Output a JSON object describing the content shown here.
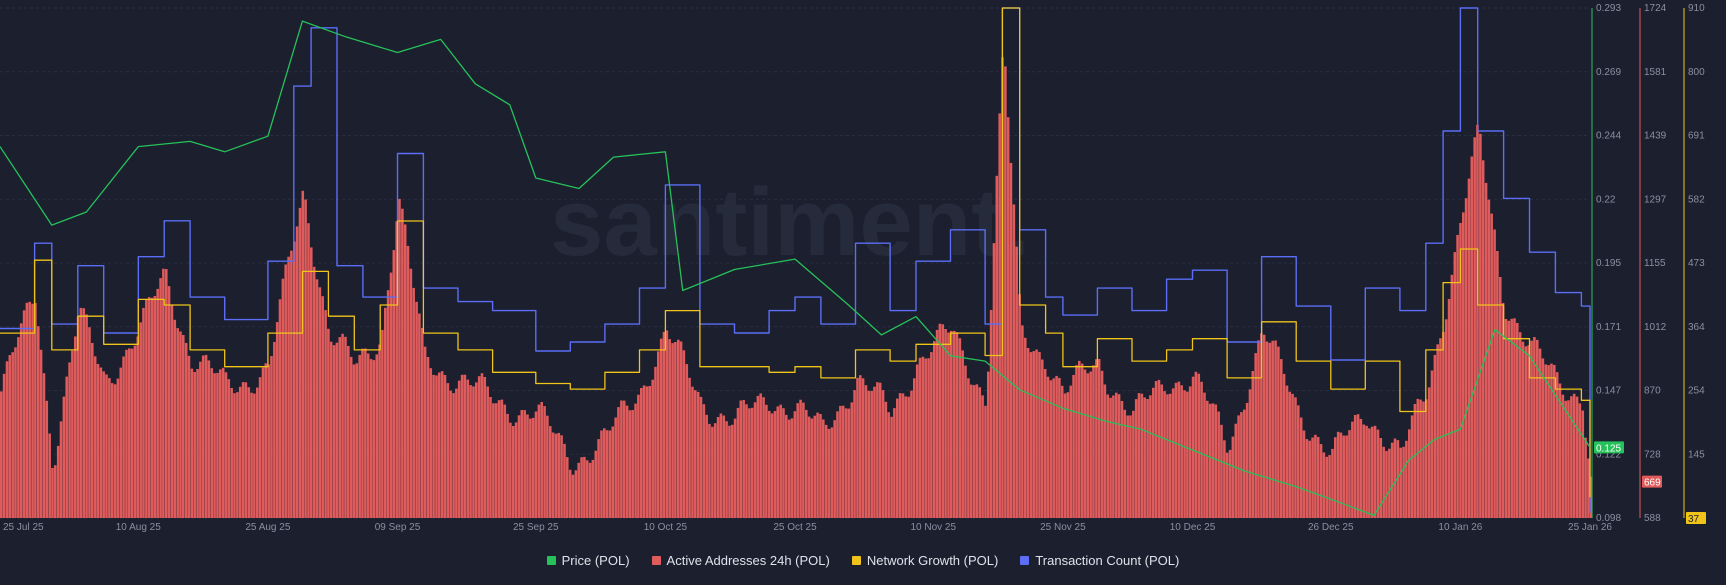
{
  "chart_data": {
    "type": "line",
    "watermark": "santiment.",
    "x_ticks": [
      "25 Jul 25",
      "10 Aug 25",
      "25 Aug 25",
      "09 Sep 25",
      "25 Sep 25",
      "10 Oct 25",
      "25 Oct 25",
      "10 Nov 25",
      "25 Nov 25",
      "10 Dec 25",
      "26 Dec 25",
      "10 Jan 26",
      "25 Jan 26"
    ],
    "axes": {
      "price": {
        "range": [
          0.098,
          0.293
        ],
        "ticks": [
          "0.293",
          "0.269",
          "0.244",
          "0.22",
          "0.195",
          "0.171",
          "0.147",
          "0.122",
          "0.098"
        ],
        "current_label": "0.125",
        "color": "#26c15a"
      },
      "active_addresses": {
        "range": [
          588,
          1724
        ],
        "ticks": [
          "1724",
          "1581",
          "1439",
          "1297",
          "1155",
          "1012",
          "870",
          "728",
          "588"
        ],
        "current_label": "669",
        "color": "#e05b5b"
      },
      "network_growth": {
        "range": [
          0,
          910
        ],
        "ticks": [
          "910",
          "800",
          "691",
          "582",
          "473",
          "364",
          "254",
          "145",
          "37"
        ],
        "current_label": "37",
        "color": "#f0c419"
      }
    },
    "series": [
      {
        "name": "Price (POL)",
        "color": "#26c15a",
        "axis": "price",
        "x": [
          "2025-07-25",
          "2025-07-31",
          "2025-08-04",
          "2025-08-10",
          "2025-08-16",
          "2025-08-20",
          "2025-08-25",
          "2025-08-29",
          "2025-09-03",
          "2025-09-09",
          "2025-09-14",
          "2025-09-18",
          "2025-09-22",
          "2025-09-25",
          "2025-09-30",
          "2025-10-04",
          "2025-10-10",
          "2025-10-12",
          "2025-10-18",
          "2025-10-25",
          "2025-10-31",
          "2025-11-04",
          "2025-11-08",
          "2025-11-12",
          "2025-11-16",
          "2025-11-20",
          "2025-11-25",
          "2025-11-30",
          "2025-12-04",
          "2025-12-10",
          "2025-12-16",
          "2025-12-22",
          "2025-12-27",
          "2025-12-31",
          "2026-01-04",
          "2026-01-07",
          "2026-01-10",
          "2026-01-14",
          "2026-01-18",
          "2026-01-22",
          "2026-01-25"
        ],
        "y": [
          0.24,
          0.21,
          0.215,
          0.24,
          0.242,
          0.238,
          0.244,
          0.288,
          0.282,
          0.276,
          0.281,
          0.264,
          0.256,
          0.228,
          0.224,
          0.236,
          0.238,
          0.185,
          0.193,
          0.197,
          0.18,
          0.168,
          0.175,
          0.16,
          0.158,
          0.147,
          0.14,
          0.135,
          0.132,
          0.124,
          0.116,
          0.11,
          0.104,
          0.099,
          0.12,
          0.128,
          0.132,
          0.17,
          0.16,
          0.14,
          0.125
        ]
      },
      {
        "name": "Active Addresses 24h (POL)",
        "color": "#e05b5b",
        "axis": "active_addresses",
        "x": [
          "2025-07-25",
          "2025-07-29",
          "2025-07-31",
          "2025-08-03",
          "2025-08-06",
          "2025-08-10",
          "2025-08-13",
          "2025-08-16",
          "2025-08-20",
          "2025-08-25",
          "2025-08-29",
          "2025-09-01",
          "2025-09-04",
          "2025-09-07",
          "2025-09-09",
          "2025-09-12",
          "2025-09-16",
          "2025-09-20",
          "2025-09-25",
          "2025-09-29",
          "2025-10-03",
          "2025-10-07",
          "2025-10-10",
          "2025-10-14",
          "2025-10-18",
          "2025-10-22",
          "2025-10-25",
          "2025-10-28",
          "2025-11-01",
          "2025-11-05",
          "2025-11-08",
          "2025-11-12",
          "2025-11-16",
          "2025-11-18",
          "2025-11-20",
          "2025-11-23",
          "2025-11-25",
          "2025-11-29",
          "2025-12-03",
          "2025-12-07",
          "2025-12-10",
          "2025-12-14",
          "2025-12-18",
          "2025-12-22",
          "2025-12-26",
          "2025-12-30",
          "2026-01-03",
          "2026-01-06",
          "2026-01-08",
          "2026-01-10",
          "2026-01-12",
          "2026-01-15",
          "2026-01-18",
          "2026-01-21",
          "2026-01-24",
          "2026-01-25"
        ],
        "y": [
          870,
          1090,
          720,
          1040,
          900,
          1000,
          1130,
          950,
          880,
          920,
          1320,
          1000,
          920,
          1000,
          1300,
          940,
          900,
          850,
          820,
          720,
          760,
          880,
          1000,
          850,
          800,
          860,
          830,
          780,
          900,
          820,
          940,
          1000,
          860,
          1640,
          1000,
          950,
          860,
          940,
          810,
          900,
          900,
          750,
          1000,
          840,
          720,
          830,
          720,
          880,
          1050,
          1250,
          1440,
          1080,
          960,
          900,
          860,
          669
        ]
      },
      {
        "name": "Network Growth (POL)",
        "color": "#f0c419",
        "axis": "network_growth",
        "x": [
          "2025-07-25",
          "2025-07-29",
          "2025-07-31",
          "2025-08-03",
          "2025-08-06",
          "2025-08-10",
          "2025-08-13",
          "2025-08-16",
          "2025-08-20",
          "2025-08-25",
          "2025-08-29",
          "2025-09-01",
          "2025-09-04",
          "2025-09-07",
          "2025-09-09",
          "2025-09-12",
          "2025-09-16",
          "2025-09-20",
          "2025-09-25",
          "2025-09-29",
          "2025-10-03",
          "2025-10-07",
          "2025-10-10",
          "2025-10-14",
          "2025-10-18",
          "2025-10-22",
          "2025-10-25",
          "2025-10-28",
          "2025-11-01",
          "2025-11-05",
          "2025-11-08",
          "2025-11-12",
          "2025-11-16",
          "2025-11-18",
          "2025-11-20",
          "2025-11-23",
          "2025-11-25",
          "2025-11-29",
          "2025-12-03",
          "2025-12-07",
          "2025-12-10",
          "2025-12-14",
          "2025-12-18",
          "2025-12-22",
          "2025-12-26",
          "2025-12-30",
          "2026-01-03",
          "2026-01-06",
          "2026-01-08",
          "2026-01-10",
          "2026-01-12",
          "2026-01-15",
          "2026-01-18",
          "2026-01-21",
          "2026-01-24",
          "2026-01-25"
        ],
        "y": [
          330,
          460,
          300,
          360,
          310,
          390,
          380,
          300,
          270,
          330,
          440,
          360,
          300,
          380,
          530,
          330,
          300,
          260,
          240,
          230,
          260,
          300,
          370,
          270,
          270,
          260,
          270,
          250,
          300,
          280,
          310,
          330,
          290,
          910,
          380,
          330,
          270,
          320,
          280,
          300,
          320,
          250,
          350,
          280,
          230,
          280,
          190,
          300,
          420,
          480,
          380,
          320,
          250,
          230,
          210,
          37
        ]
      },
      {
        "name": "Transaction Count (POL)",
        "color": "#5b6ef5",
        "axis": "active_addresses",
        "x": [
          "2025-07-25",
          "2025-07-29",
          "2025-07-31",
          "2025-08-03",
          "2025-08-06",
          "2025-08-10",
          "2025-08-13",
          "2025-08-16",
          "2025-08-20",
          "2025-08-25",
          "2025-08-28",
          "2025-08-30",
          "2025-09-02",
          "2025-09-05",
          "2025-09-09",
          "2025-09-12",
          "2025-09-16",
          "2025-09-20",
          "2025-09-25",
          "2025-09-29",
          "2025-10-03",
          "2025-10-07",
          "2025-10-10",
          "2025-10-14",
          "2025-10-18",
          "2025-10-22",
          "2025-10-25",
          "2025-10-28",
          "2025-11-01",
          "2025-11-05",
          "2025-11-08",
          "2025-11-12",
          "2025-11-16",
          "2025-11-18",
          "2025-11-20",
          "2025-11-23",
          "2025-11-25",
          "2025-11-29",
          "2025-12-03",
          "2025-12-07",
          "2025-12-10",
          "2025-12-14",
          "2025-12-18",
          "2025-12-22",
          "2025-12-26",
          "2025-12-30",
          "2026-01-03",
          "2026-01-06",
          "2026-01-08",
          "2026-01-10",
          "2026-01-12",
          "2026-01-15",
          "2026-01-18",
          "2026-01-21",
          "2026-01-24",
          "2026-01-25"
        ],
        "y": [
          1010,
          1200,
          1020,
          1150,
          1000,
          1170,
          1250,
          1080,
          1030,
          1160,
          1550,
          1680,
          1150,
          1080,
          1400,
          1100,
          1070,
          1050,
          960,
          980,
          1020,
          1100,
          1330,
          1020,
          1000,
          1050,
          1080,
          1020,
          1200,
          1050,
          1160,
          1230,
          1020,
          1724,
          1230,
          1080,
          1040,
          1100,
          1050,
          1120,
          1140,
          980,
          1170,
          1060,
          940,
          1100,
          1050,
          1200,
          1450,
          1724,
          1450,
          1300,
          1180,
          1090,
          1060,
          600
        ]
      }
    ]
  }
}
